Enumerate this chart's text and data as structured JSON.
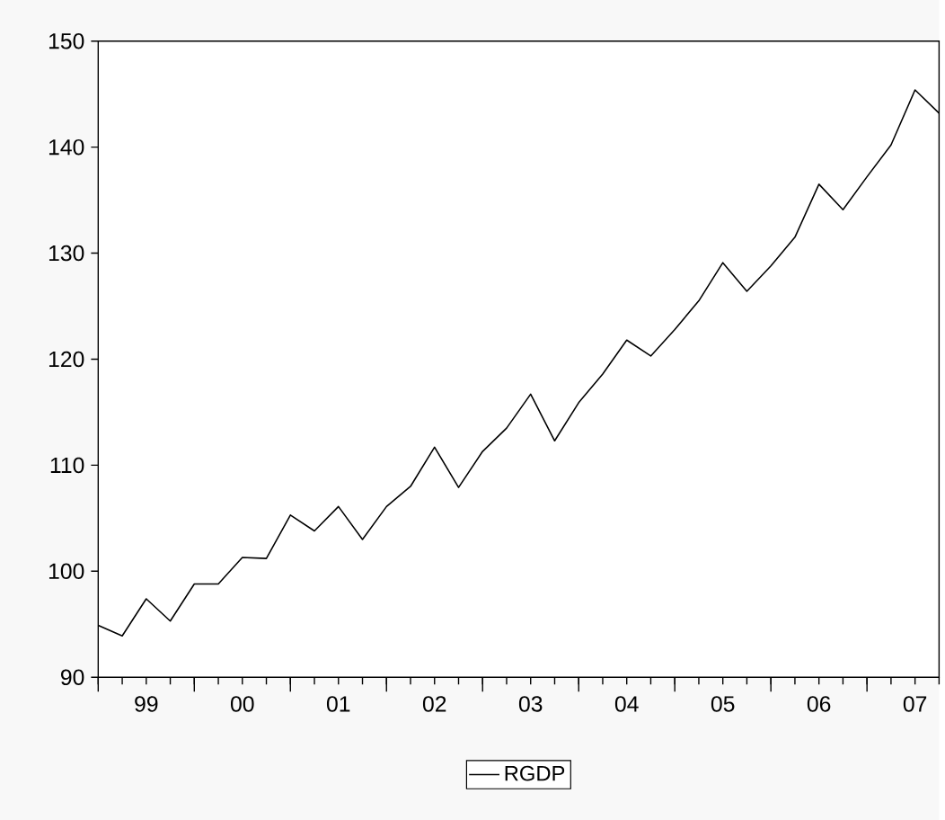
{
  "chart_data": {
    "type": "line",
    "categories": [
      null,
      null,
      "99",
      null,
      null,
      null,
      "00",
      null,
      null,
      null,
      "01",
      null,
      null,
      null,
      "02",
      null,
      null,
      null,
      "03",
      null,
      null,
      null,
      "04",
      null,
      null,
      null,
      "05",
      null,
      null,
      null,
      "06",
      null,
      null,
      null,
      "07",
      null
    ],
    "series": [
      {
        "name": "RGDP",
        "color": "#000000",
        "values": [
          94.9,
          93.9,
          97.4,
          95.3,
          98.8,
          98.8,
          101.3,
          101.2,
          105.3,
          103.8,
          106.1,
          103.0,
          106.1,
          108.0,
          111.7,
          107.9,
          111.3,
          113.5,
          116.7,
          112.3,
          115.9,
          118.6,
          121.8,
          120.3,
          122.8,
          125.5,
          129.1,
          126.4,
          128.8,
          131.5,
          136.5,
          134.1,
          137.2,
          140.2,
          145.4,
          143.2
        ]
      }
    ],
    "ylim": [
      90,
      150
    ],
    "yticks": [
      90,
      100,
      110,
      120,
      130,
      140,
      150
    ],
    "grid": false,
    "legend": "bottom"
  }
}
